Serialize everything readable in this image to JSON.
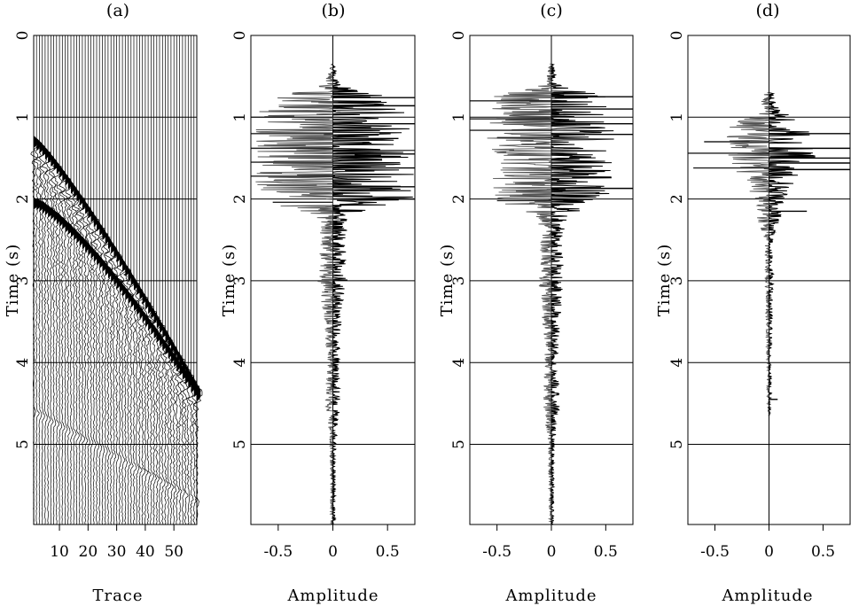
{
  "chart_data": [
    {
      "type": "wiggle",
      "panel": "(a)",
      "title": "(a)",
      "xlabel": "Trace",
      "ylabel": "Time (s)",
      "xlim": [
        1,
        58
      ],
      "ylim": [
        0,
        5.98
      ],
      "xticks": [
        10,
        20,
        30,
        40,
        50
      ],
      "xtick_labels": [
        "10",
        "20",
        "30",
        "40",
        "50"
      ],
      "yticks": [
        0,
        1,
        2,
        3,
        4,
        5
      ],
      "ytick_labels": [
        "0",
        "1",
        "2",
        "3",
        "4",
        "5"
      ],
      "n_traces": 58,
      "events": [
        {
          "name": "first arrival",
          "t0": 1.3,
          "t_last": 4.35
        },
        {
          "name": "reflection",
          "t0": 2.05,
          "t_last": 4.4
        },
        {
          "name": "late event",
          "t0": 4.6,
          "t_last": 5.7
        }
      ]
    },
    {
      "type": "trace",
      "panel": "(b)",
      "title": "(b)",
      "xlabel": "Amplitude",
      "ylabel": "Time (s)",
      "xlim": [
        -0.75,
        0.75
      ],
      "ylim": [
        0,
        5.98
      ],
      "xticks": [
        -0.5,
        0,
        0.5
      ],
      "xtick_labels": [
        "-0.5",
        "0",
        "0.5"
      ],
      "yticks": [
        0,
        1,
        2,
        3,
        4,
        5
      ],
      "ytick_labels": [
        "0",
        "1",
        "2",
        "3",
        "4",
        "5"
      ],
      "onset": 0.35,
      "envelope": [
        [
          0.35,
          0.02
        ],
        [
          0.6,
          0.08
        ],
        [
          0.75,
          0.5
        ],
        [
          1.0,
          0.75
        ],
        [
          1.5,
          0.75
        ],
        [
          2.0,
          0.75
        ],
        [
          2.2,
          0.15
        ],
        [
          2.5,
          0.12
        ],
        [
          3.0,
          0.14
        ],
        [
          3.5,
          0.08
        ],
        [
          4.0,
          0.06
        ],
        [
          4.5,
          0.07
        ],
        [
          5.0,
          0.03
        ],
        [
          5.98,
          0.02
        ]
      ],
      "spikes": [
        [
          0.76,
          0.75
        ],
        [
          0.86,
          0.75
        ],
        [
          1.0,
          -0.75
        ],
        [
          1.08,
          0.75
        ],
        [
          1.2,
          -0.75
        ],
        [
          1.26,
          0.6
        ],
        [
          1.38,
          -0.75
        ],
        [
          1.45,
          0.75
        ],
        [
          1.55,
          -0.75
        ],
        [
          1.62,
          0.75
        ],
        [
          1.72,
          -0.75
        ],
        [
          1.85,
          0.75
        ],
        [
          2.0,
          0.75
        ],
        [
          2.04,
          -0.55
        ]
      ]
    },
    {
      "type": "trace",
      "panel": "(c)",
      "title": "(c)",
      "xlabel": "Amplitude",
      "ylabel": "Time (s)",
      "xlim": [
        -0.75,
        0.75
      ],
      "ylim": [
        0,
        5.98
      ],
      "xticks": [
        -0.5,
        0,
        0.5
      ],
      "xtick_labels": [
        "-0.5",
        "0",
        "0.5"
      ],
      "yticks": [
        0,
        1,
        2,
        3,
        4,
        5
      ],
      "ytick_labels": [
        "0",
        "1",
        "2",
        "3",
        "4",
        "5"
      ],
      "onset": 0.35,
      "envelope": [
        [
          0.35,
          0.02
        ],
        [
          0.6,
          0.06
        ],
        [
          0.75,
          0.55
        ],
        [
          1.0,
          0.6
        ],
        [
          1.5,
          0.6
        ],
        [
          2.0,
          0.55
        ],
        [
          2.2,
          0.15
        ],
        [
          2.5,
          0.1
        ],
        [
          3.0,
          0.12
        ],
        [
          3.5,
          0.08
        ],
        [
          4.0,
          0.06
        ],
        [
          4.5,
          0.08
        ],
        [
          5.0,
          0.03
        ],
        [
          5.98,
          0.02
        ]
      ],
      "spikes": [
        [
          0.75,
          0.75
        ],
        [
          0.8,
          -0.75
        ],
        [
          0.9,
          0.75
        ],
        [
          1.02,
          -0.75
        ],
        [
          1.08,
          0.75
        ],
        [
          1.16,
          -0.75
        ],
        [
          1.21,
          0.75
        ],
        [
          1.25,
          -0.5
        ],
        [
          1.87,
          0.75
        ],
        [
          2.02,
          -0.5
        ]
      ]
    },
    {
      "type": "trace",
      "panel": "(d)",
      "title": "(d)",
      "xlabel": "Amplitude",
      "ylabel": "Time (s)",
      "xlim": [
        -0.75,
        0.75
      ],
      "ylim": [
        0,
        5.98
      ],
      "xticks": [
        -0.5,
        0,
        0.5
      ],
      "xtick_labels": [
        "-0.5",
        "0",
        "0.5"
      ],
      "yticks": [
        0,
        1,
        2,
        3,
        4,
        5
      ],
      "ytick_labels": [
        "0",
        "1",
        "2",
        "3",
        "4",
        "5"
      ],
      "onset": 0.7,
      "end": 4.65,
      "envelope": [
        [
          0.7,
          0.04
        ],
        [
          0.9,
          0.1
        ],
        [
          1.15,
          0.4
        ],
        [
          1.5,
          0.45
        ],
        [
          1.75,
          0.25
        ],
        [
          2.0,
          0.15
        ],
        [
          2.2,
          0.12
        ],
        [
          2.5,
          0.04
        ],
        [
          3.0,
          0.04
        ],
        [
          3.5,
          0.03
        ],
        [
          4.0,
          0.02
        ],
        [
          4.4,
          0.02
        ],
        [
          4.65,
          0.01
        ]
      ],
      "spikes": [
        [
          1.2,
          0.75
        ],
        [
          1.3,
          -0.6
        ],
        [
          1.38,
          0.75
        ],
        [
          1.44,
          -0.75
        ],
        [
          1.5,
          0.75
        ],
        [
          1.56,
          0.75
        ],
        [
          1.62,
          -0.7
        ],
        [
          1.64,
          0.75
        ],
        [
          2.15,
          0.35
        ],
        [
          4.45,
          0.08
        ]
      ]
    }
  ]
}
